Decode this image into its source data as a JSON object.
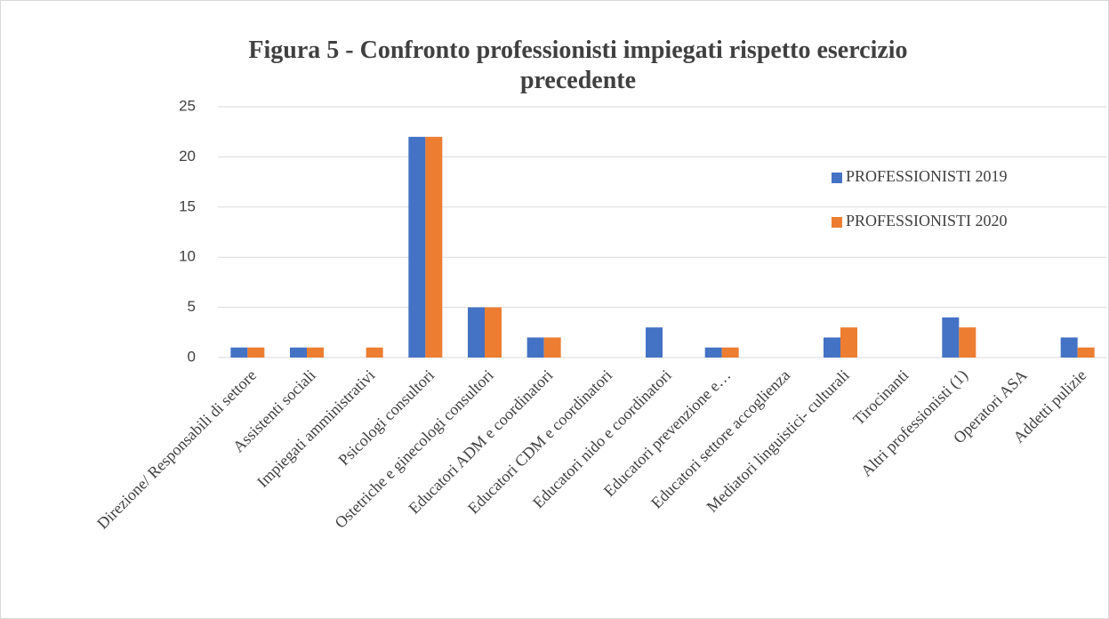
{
  "chart_data": {
    "type": "bar",
    "title": "Figura 5 - Confronto professionisti impiegati rispetto esercizio precedente",
    "categories": [
      "Direzione/ Responsabili di settore",
      "Assistenti sociali",
      "Impiegati amministrativi",
      "Psicologi consultori",
      "Ostetriche e ginecologi consultori",
      "Educatori ADM e coordinatori",
      "Educatori CDM e coordinatori",
      "Educatori nido e coordinatori",
      "Educatori prevenzione e…",
      "Educatori settore accoglienza",
      "Mediatori linguistici- culturali",
      "Tirocinanti",
      "Altri professionisti (1)",
      "Operatori ASA",
      "Addetti pulizie"
    ],
    "series": [
      {
        "name": "PROFESSIONISTI 2019",
        "color": "#4472c4",
        "values": [
          1,
          1,
          0,
          22,
          5,
          2,
          0,
          3,
          1,
          0,
          2,
          0,
          4,
          0,
          2
        ]
      },
      {
        "name": "PROFESSIONISTI 2020",
        "color": "#ed7d31",
        "values": [
          1,
          1,
          1,
          22,
          5,
          2,
          0,
          0,
          1,
          0,
          3,
          0,
          3,
          0,
          1
        ]
      }
    ],
    "ylim": [
      0,
      25
    ],
    "yticks": [
      0,
      5,
      10,
      15,
      20,
      25
    ],
    "grid": true,
    "legend": "right"
  }
}
